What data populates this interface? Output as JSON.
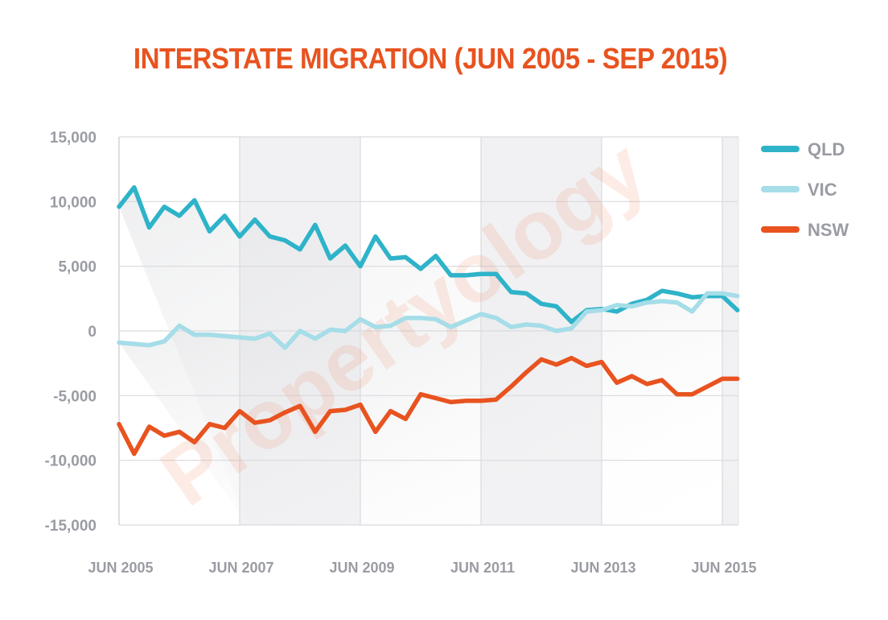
{
  "chart_data": {
    "type": "line",
    "title": "INTERSTATE MIGRATION (JUN 2005 - SEP 2015)",
    "watermark": "Propertyology",
    "xlabel": "",
    "ylabel": "",
    "ylim": [
      -15000,
      15000
    ],
    "yticks": [
      "15,000",
      "10,000",
      "5,000",
      "0",
      "-5,000",
      "-10,000",
      "-15,000"
    ],
    "ytick_values": [
      15000,
      10000,
      5000,
      0,
      -5000,
      -10000,
      -15000
    ],
    "xticks": [
      "JUN 2005",
      "JUN 2007",
      "JUN 2009",
      "JUN 2011",
      "JUN 2013",
      "JUN 2015"
    ],
    "x": [
      "Jun 2005",
      "Sep 2005",
      "Dec 2005",
      "Mar 2006",
      "Jun 2006",
      "Sep 2006",
      "Dec 2006",
      "Mar 2007",
      "Jun 2007",
      "Sep 2007",
      "Dec 2007",
      "Mar 2008",
      "Jun 2008",
      "Sep 2008",
      "Dec 2008",
      "Mar 2009",
      "Jun 2009",
      "Sep 2009",
      "Dec 2009",
      "Mar 2010",
      "Jun 2010",
      "Sep 2010",
      "Dec 2010",
      "Mar 2011",
      "Jun 2011",
      "Sep 2011",
      "Dec 2011",
      "Mar 2012",
      "Jun 2012",
      "Sep 2012",
      "Dec 2012",
      "Mar 2013",
      "Jun 2013",
      "Sep 2013",
      "Dec 2013",
      "Mar 2014",
      "Jun 2014",
      "Sep 2014",
      "Dec 2014",
      "Mar 2015",
      "Jun 2015",
      "Sep 2015"
    ],
    "grid": true,
    "legend_position": "right",
    "series": [
      {
        "name": "QLD",
        "color": "#2eb3c9",
        "values": [
          9600,
          11100,
          8000,
          9600,
          8900,
          10100,
          7700,
          8900,
          7300,
          8600,
          7300,
          7000,
          6300,
          8200,
          5600,
          6600,
          5000,
          7300,
          5600,
          5700,
          4800,
          5800,
          4300,
          4300,
          4400,
          4400,
          3000,
          2900,
          2100,
          1900,
          700,
          1600,
          1700,
          1500,
          2100,
          2400,
          3100,
          2900,
          2600,
          2700,
          2700,
          1600
        ]
      },
      {
        "name": "VIC",
        "color": "#a5dde8",
        "values": [
          -900,
          -1000,
          -1100,
          -800,
          400,
          -300,
          -300,
          -400,
          -500,
          -600,
          -200,
          -1300,
          0,
          -600,
          100,
          0,
          900,
          300,
          400,
          1000,
          1000,
          900,
          300,
          800,
          1300,
          1000,
          300,
          500,
          400,
          0,
          200,
          1500,
          1600,
          2000,
          1900,
          2200,
          2300,
          2200,
          1500,
          2900,
          2900,
          2700
        ]
      },
      {
        "name": "NSW",
        "color": "#e8531f",
        "values": [
          -7200,
          -9500,
          -7400,
          -8100,
          -7800,
          -8600,
          -7200,
          -7500,
          -6200,
          -7100,
          -6900,
          -6300,
          -5800,
          -7800,
          -6200,
          -6100,
          -5700,
          -7800,
          -6200,
          -6800,
          -4900,
          -5200,
          -5500,
          -5400,
          -5400,
          -5300,
          -4300,
          -3200,
          -2200,
          -2600,
          -2100,
          -2700,
          -2400,
          -4000,
          -3500,
          -4100,
          -3800,
          -4900,
          -4900,
          -4300,
          -3700,
          -3700
        ]
      }
    ]
  }
}
